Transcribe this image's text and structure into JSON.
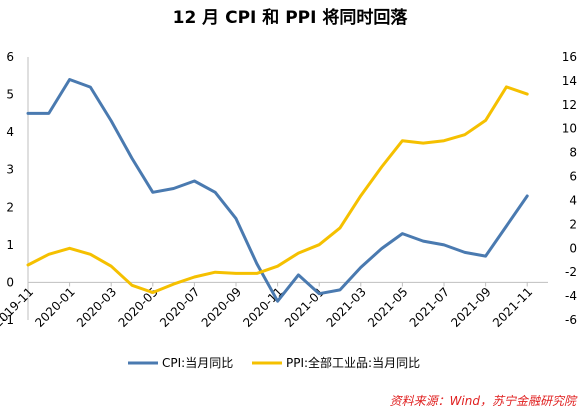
{
  "chart_data": {
    "type": "line",
    "title": "12 月 CPI 和 PPI 将同时回落",
    "x_tick_labels": [
      "2019-11",
      "2020-01",
      "2020-03",
      "2020-05",
      "2020-07",
      "2020-09",
      "2020-11",
      "2021-01",
      "2021-03",
      "2021-05",
      "2021-07",
      "2021-09",
      "2021-11"
    ],
    "x": [
      "2019-11",
      "2019-12",
      "2020-01",
      "2020-02",
      "2020-03",
      "2020-04",
      "2020-05",
      "2020-06",
      "2020-07",
      "2020-08",
      "2020-09",
      "2020-10",
      "2020-11",
      "2020-12",
      "2021-01",
      "2021-02",
      "2021-03",
      "2021-04",
      "2021-05",
      "2021-06",
      "2021-07",
      "2021-08",
      "2021-09",
      "2021-10",
      "2021-11",
      "2021-12"
    ],
    "y_left": {
      "min": -1,
      "max": 6,
      "ticks": [
        -1,
        0,
        1,
        2,
        3,
        4,
        5,
        6
      ]
    },
    "y_right": {
      "min": -6,
      "max": 16,
      "ticks": [
        -6,
        -4,
        -2,
        0,
        2,
        4,
        6,
        8,
        10,
        12,
        14,
        16
      ]
    },
    "series": [
      {
        "name": "CPI:当月同比",
        "axis": "left",
        "color": "#4a7ab0",
        "values": [
          4.5,
          4.5,
          5.4,
          5.2,
          4.3,
          3.3,
          2.4,
          2.5,
          2.7,
          2.4,
          1.7,
          0.5,
          -0.5,
          0.2,
          -0.3,
          -0.2,
          0.4,
          0.9,
          1.3,
          1.1,
          1.0,
          0.8,
          0.7,
          1.5,
          2.3,
          null
        ]
      },
      {
        "name": "PPI:全部工业品:当月同比",
        "axis": "right",
        "color": "#f5c000",
        "values": [
          -1.4,
          -0.5,
          -0.0,
          -0.5,
          -1.5,
          -3.1,
          -3.7,
          -3.0,
          -2.4,
          -2.0,
          -2.1,
          -2.1,
          -1.5,
          -0.4,
          0.3,
          1.7,
          4.4,
          6.8,
          9.0,
          8.8,
          9.0,
          9.5,
          10.7,
          13.5,
          12.9,
          null
        ]
      }
    ],
    "legend_position": "bottom",
    "grid": false
  },
  "source": "资料来源：Wind，苏宁金融研究院"
}
